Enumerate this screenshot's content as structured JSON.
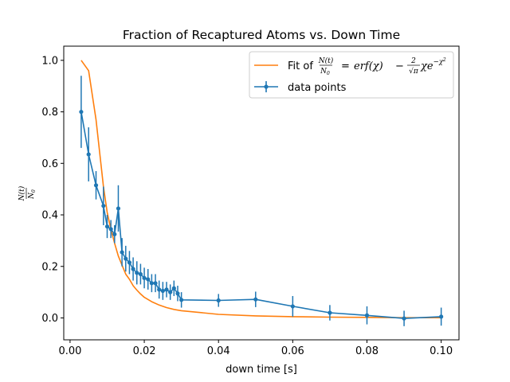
{
  "chart_data": {
    "type": "line",
    "title": "Fraction of Recaptured Atoms vs. Down Time",
    "xlabel": "down time [s]",
    "ylabel_numerator": "N(t)",
    "ylabel_denominator": "N",
    "ylabel_subscript": "0",
    "xlim": [
      -0.0017,
      0.1048
    ],
    "ylim": [
      -0.085,
      1.055
    ],
    "xticks": [
      0.0,
      0.02,
      0.04,
      0.06,
      0.08,
      0.1
    ],
    "xtick_labels": [
      "0.00",
      "0.02",
      "0.04",
      "0.06",
      "0.08",
      "0.10"
    ],
    "yticks": [
      0.0,
      0.2,
      0.4,
      0.6,
      0.8,
      1.0
    ],
    "ytick_labels": [
      "0.0",
      "0.2",
      "0.4",
      "0.6",
      "0.8",
      "1.0"
    ],
    "grid": false,
    "legend_placement": "top-right",
    "series": [
      {
        "name": "data points",
        "kind": "errorbar",
        "color": "#1f77b4",
        "x": [
          0.003,
          0.005,
          0.007,
          0.009,
          0.01,
          0.011,
          0.012,
          0.013,
          0.014,
          0.015,
          0.016,
          0.017,
          0.018,
          0.019,
          0.02,
          0.021,
          0.022,
          0.023,
          0.024,
          0.025,
          0.026,
          0.027,
          0.028,
          0.029,
          0.03,
          0.04,
          0.05,
          0.06,
          0.07,
          0.08,
          0.09,
          0.1
        ],
        "y": [
          0.8,
          0.635,
          0.515,
          0.435,
          0.355,
          0.345,
          0.325,
          0.425,
          0.255,
          0.23,
          0.215,
          0.19,
          0.175,
          0.17,
          0.155,
          0.15,
          0.135,
          0.135,
          0.11,
          0.105,
          0.11,
          0.1,
          0.115,
          0.095,
          0.07,
          0.068,
          0.072,
          0.045,
          0.02,
          0.01,
          -0.002,
          0.005
        ],
        "yerr": [
          0.14,
          0.105,
          0.055,
          0.075,
          0.045,
          0.035,
          0.035,
          0.09,
          0.055,
          0.05,
          0.045,
          0.045,
          0.045,
          0.04,
          0.04,
          0.04,
          0.035,
          0.035,
          0.035,
          0.035,
          0.03,
          0.03,
          0.03,
          0.03,
          0.03,
          0.025,
          0.03,
          0.04,
          0.03,
          0.035,
          0.03,
          0.035
        ]
      },
      {
        "name": "Fit of",
        "kind": "line",
        "color": "#ff7f0e",
        "x": [
          0.003,
          0.005,
          0.007,
          0.009,
          0.01,
          0.011,
          0.012,
          0.013,
          0.014,
          0.015,
          0.016,
          0.017,
          0.018,
          0.019,
          0.02,
          0.022,
          0.024,
          0.026,
          0.028,
          0.03,
          0.04,
          0.05,
          0.06,
          0.07,
          0.08,
          0.09,
          0.1
        ],
        "y": [
          1.0,
          0.96,
          0.77,
          0.51,
          0.41,
          0.345,
          0.29,
          0.24,
          0.205,
          0.17,
          0.15,
          0.125,
          0.108,
          0.093,
          0.08,
          0.063,
          0.05,
          0.04,
          0.033,
          0.028,
          0.014,
          0.008,
          0.005,
          0.003,
          0.002,
          0.001,
          0.001
        ]
      }
    ]
  },
  "legend": {
    "fit_prefix": "Fit of",
    "fit_frac_num": "N(t)",
    "fit_frac_den": "N",
    "fit_frac_den_sub": "0",
    "fit_equals": "=",
    "fit_erf": "erf(χ)",
    "fit_minus": "−",
    "fit_coef_num": "2",
    "fit_coef_den": "√π",
    "fit_tail": "χe",
    "fit_exp": "−χ",
    "fit_exp_sup": "2",
    "data_label": "data points"
  }
}
